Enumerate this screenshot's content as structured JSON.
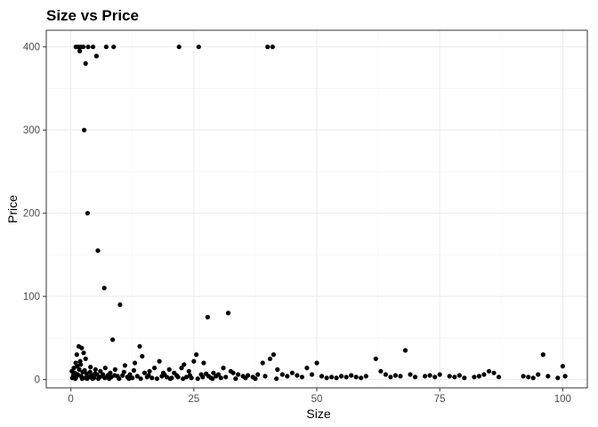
{
  "chart_data": {
    "type": "scatter",
    "title": "Size vs Price",
    "xlabel": "Size",
    "ylabel": "Price",
    "xlim": [
      -5,
      105
    ],
    "ylim": [
      -10,
      420
    ],
    "x_ticks": [
      0,
      25,
      50,
      75,
      100
    ],
    "y_ticks": [
      0,
      100,
      200,
      300,
      400
    ],
    "grid": true,
    "legend": "none",
    "point_color": "#000000",
    "points": [
      [
        1.0,
        400
      ],
      [
        1.5,
        400
      ],
      [
        2.0,
        400
      ],
      [
        2.5,
        400
      ],
      [
        3.5,
        400
      ],
      [
        4.5,
        400
      ],
      [
        7.2,
        400
      ],
      [
        8.7,
        400
      ],
      [
        22.0,
        400
      ],
      [
        26.0,
        400
      ],
      [
        40.0,
        400
      ],
      [
        41.0,
        400
      ],
      [
        1.8,
        395
      ],
      [
        5.2,
        389
      ],
      [
        3.0,
        380
      ],
      [
        2.7,
        300
      ],
      [
        3.4,
        200
      ],
      [
        5.5,
        155
      ],
      [
        6.8,
        110
      ],
      [
        10.0,
        90
      ],
      [
        8.5,
        48
      ],
      [
        14.0,
        40
      ],
      [
        27.8,
        75
      ],
      [
        32.0,
        80
      ],
      [
        1.2,
        30
      ],
      [
        1.6,
        40
      ],
      [
        2.2,
        38
      ],
      [
        2.6,
        32
      ],
      [
        3.0,
        25
      ],
      [
        1.0,
        20
      ],
      [
        2.0,
        18
      ],
      [
        4.0,
        15
      ],
      [
        5.0,
        12
      ],
      [
        6.0,
        10
      ],
      [
        7.0,
        14
      ],
      [
        8.0,
        8
      ],
      [
        9.0,
        12
      ],
      [
        10.5,
        5
      ],
      [
        11.0,
        17
      ],
      [
        12.0,
        6
      ],
      [
        13.0,
        20
      ],
      [
        14.5,
        28
      ],
      [
        15.0,
        8
      ],
      [
        16.0,
        10
      ],
      [
        17.0,
        14
      ],
      [
        18.0,
        22
      ],
      [
        19.0,
        6
      ],
      [
        20.0,
        12
      ],
      [
        21.0,
        8
      ],
      [
        22.5,
        14
      ],
      [
        23.0,
        18
      ],
      [
        24.0,
        10
      ],
      [
        25.0,
        22
      ],
      [
        25.5,
        30
      ],
      [
        26.5,
        6
      ],
      [
        27.0,
        20
      ],
      [
        28.0,
        4
      ],
      [
        29.0,
        8
      ],
      [
        30.0,
        6
      ],
      [
        31.0,
        14
      ],
      [
        32.5,
        10
      ],
      [
        33.0,
        8
      ],
      [
        34.0,
        6
      ],
      [
        35.0,
        4
      ],
      [
        36.0,
        5
      ],
      [
        37.0,
        3
      ],
      [
        38.0,
        6
      ],
      [
        39.0,
        20
      ],
      [
        40.5,
        25
      ],
      [
        41.2,
        30
      ],
      [
        42.0,
        12
      ],
      [
        43.0,
        6
      ],
      [
        44.0,
        4
      ],
      [
        45.0,
        8
      ],
      [
        46.0,
        5
      ],
      [
        47.0,
        3
      ],
      [
        48.0,
        14
      ],
      [
        49.0,
        6
      ],
      [
        50.0,
        20
      ],
      [
        51.0,
        4
      ],
      [
        52.0,
        2
      ],
      [
        53.0,
        3
      ],
      [
        54.0,
        2
      ],
      [
        55.0,
        4
      ],
      [
        56.0,
        3
      ],
      [
        57.0,
        5
      ],
      [
        58.0,
        3
      ],
      [
        59.0,
        2
      ],
      [
        60.0,
        4
      ],
      [
        62.0,
        25
      ],
      [
        63.0,
        10
      ],
      [
        64.0,
        6
      ],
      [
        65.0,
        3
      ],
      [
        66.0,
        5
      ],
      [
        67.0,
        4
      ],
      [
        68.0,
        35
      ],
      [
        69.0,
        6
      ],
      [
        70.0,
        3
      ],
      [
        72.0,
        4
      ],
      [
        73.0,
        5
      ],
      [
        74.0,
        3
      ],
      [
        75.0,
        6
      ],
      [
        77.0,
        4
      ],
      [
        78.0,
        3
      ],
      [
        79.0,
        5
      ],
      [
        80.0,
        2
      ],
      [
        82.0,
        3
      ],
      [
        83.0,
        4
      ],
      [
        84.0,
        6
      ],
      [
        85.0,
        10
      ],
      [
        86.0,
        8
      ],
      [
        87.0,
        3
      ],
      [
        92.0,
        4
      ],
      [
        93.0,
        3
      ],
      [
        94.0,
        2
      ],
      [
        95.0,
        6
      ],
      [
        96.0,
        30
      ],
      [
        97.0,
        4
      ],
      [
        99.0,
        2
      ],
      [
        100.0,
        16
      ],
      [
        100.5,
        4
      ],
      [
        0.3,
        2
      ],
      [
        0.5,
        5
      ],
      [
        0.8,
        8
      ],
      [
        1.1,
        3
      ],
      [
        1.4,
        6
      ],
      [
        1.7,
        12
      ],
      [
        2.1,
        4
      ],
      [
        2.4,
        9
      ],
      [
        2.9,
        2
      ],
      [
        3.2,
        7
      ],
      [
        3.7,
        3
      ],
      [
        4.2,
        5
      ],
      [
        4.7,
        2
      ],
      [
        5.3,
        6
      ],
      [
        5.8,
        3
      ],
      [
        6.3,
        4
      ],
      [
        6.9,
        2
      ],
      [
        7.5,
        5
      ],
      [
        8.2,
        3
      ],
      [
        9.5,
        4
      ],
      [
        11.5,
        3
      ],
      [
        12.5,
        2
      ],
      [
        13.5,
        4
      ],
      [
        15.5,
        3
      ],
      [
        16.5,
        2
      ],
      [
        18.5,
        4
      ],
      [
        19.5,
        3
      ],
      [
        20.5,
        2
      ],
      [
        21.5,
        5
      ],
      [
        23.5,
        3
      ],
      [
        24.5,
        2
      ],
      [
        26.8,
        3
      ],
      [
        28.5,
        2
      ],
      [
        29.5,
        4
      ],
      [
        30.5,
        2
      ],
      [
        0.2,
        10
      ],
      [
        0.6,
        14
      ],
      [
        0.9,
        1
      ],
      [
        1.3,
        16
      ],
      [
        1.9,
        22
      ],
      [
        2.3,
        1
      ],
      [
        2.8,
        11
      ],
      [
        3.3,
        1
      ],
      [
        3.9,
        9
      ],
      [
        4.4,
        1
      ],
      [
        4.9,
        7
      ],
      [
        5.6,
        1
      ],
      [
        6.5,
        6
      ],
      [
        7.8,
        1
      ],
      [
        8.9,
        5
      ],
      [
        9.8,
        1
      ],
      [
        10.8,
        9
      ],
      [
        11.8,
        1
      ],
      [
        12.8,
        11
      ],
      [
        14.2,
        1
      ],
      [
        15.8,
        5
      ],
      [
        17.5,
        1
      ],
      [
        18.8,
        8
      ],
      [
        20.2,
        1
      ],
      [
        21.8,
        3
      ],
      [
        22.8,
        1
      ],
      [
        24.2,
        5
      ],
      [
        25.8,
        1
      ],
      [
        27.5,
        7
      ],
      [
        28.8,
        1
      ],
      [
        31.5,
        3
      ],
      [
        33.5,
        1
      ],
      [
        35.5,
        2
      ],
      [
        37.5,
        1
      ],
      [
        39.5,
        4
      ],
      [
        41.8,
        1
      ]
    ]
  }
}
